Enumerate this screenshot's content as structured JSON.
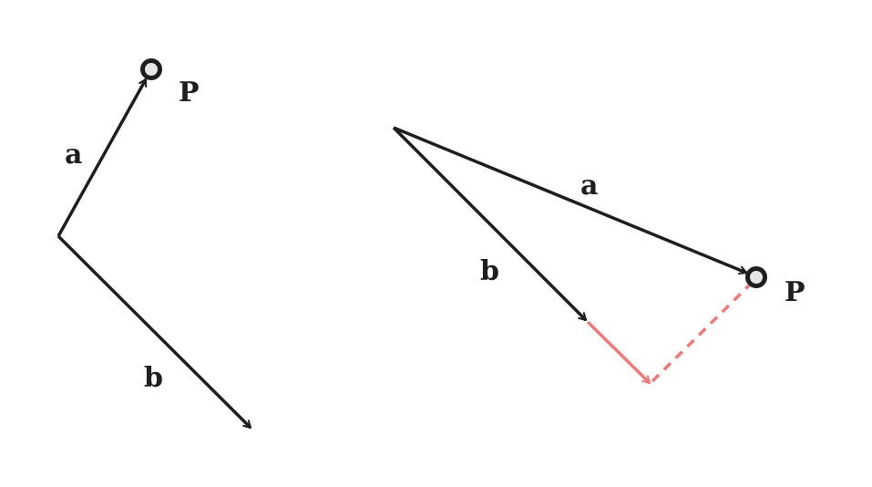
{
  "colors": {
    "stroke": "#1e1e1e",
    "projection": "#f27878",
    "point_fill": "#e6e6e6"
  },
  "left": {
    "label_a": "a",
    "label_b": "b",
    "label_p": "P"
  },
  "right": {
    "label_a": "a",
    "label_b": "b",
    "label_p": "P"
  }
}
